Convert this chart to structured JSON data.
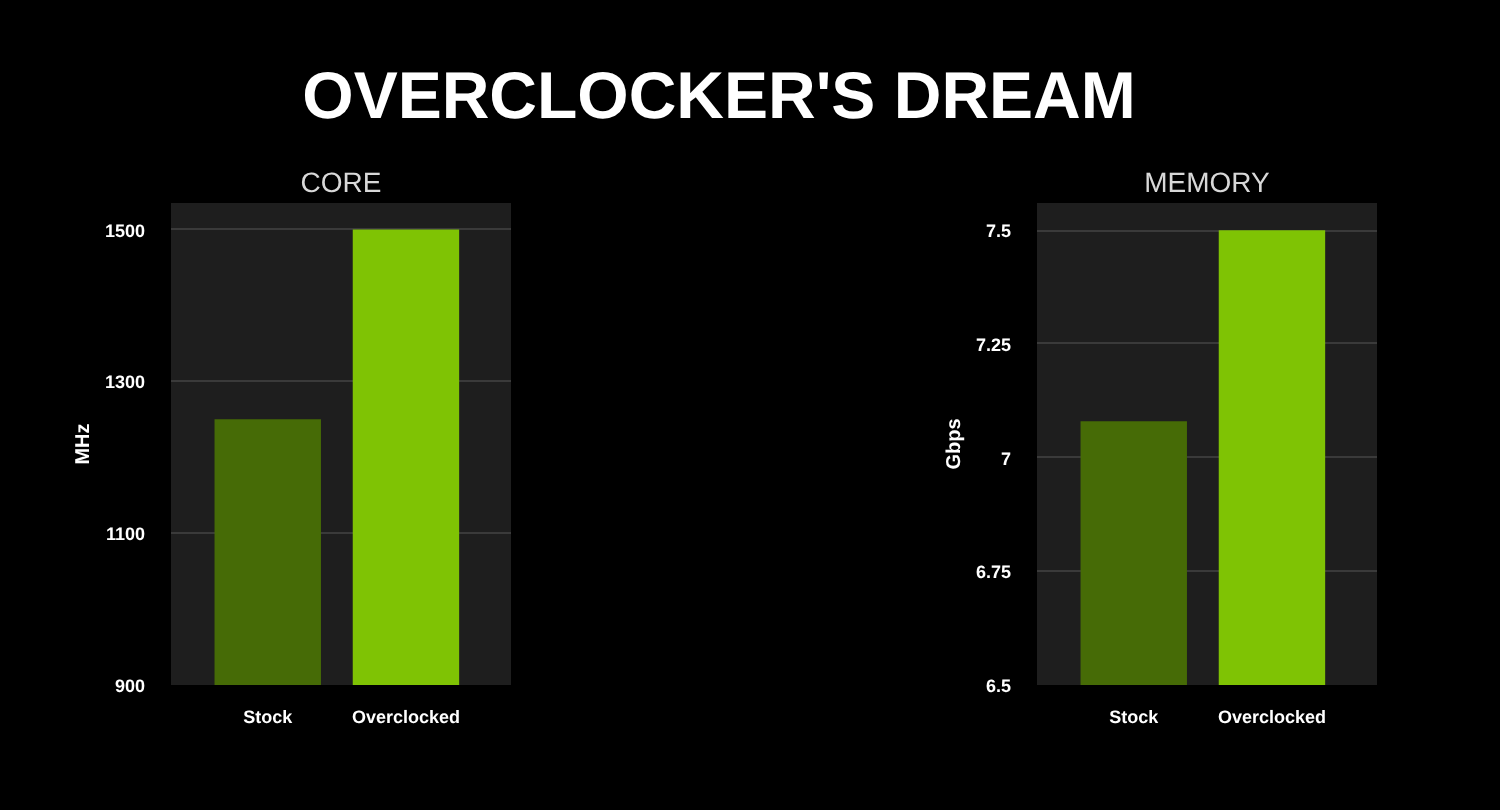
{
  "chart_data": [
    {
      "type": "other",
      "title": "OVERCLOCKER'S DREAM"
    },
    {
      "type": "bar",
      "title": "CORE",
      "ylabel": "MHz",
      "categories": [
        "Stock",
        "Overclocked"
      ],
      "values": [
        1250,
        1500
      ],
      "colors": [
        "#466b06",
        "#7fc304"
      ],
      "ylim": [
        900,
        1535
      ],
      "yticks": [
        900,
        1100,
        1300,
        1500
      ],
      "grid": "y"
    },
    {
      "type": "bar",
      "title": "MEMORY",
      "ylabel": "Gbps",
      "categories": [
        "Stock",
        "Overclocked"
      ],
      "values": [
        7.08,
        7.5
      ],
      "colors": [
        "#466b06",
        "#7fc304"
      ],
      "ylim": [
        6.5,
        7.56
      ],
      "yticks": [
        6.5,
        6.75,
        7,
        7.25,
        7.5
      ],
      "grid": "y"
    }
  ]
}
